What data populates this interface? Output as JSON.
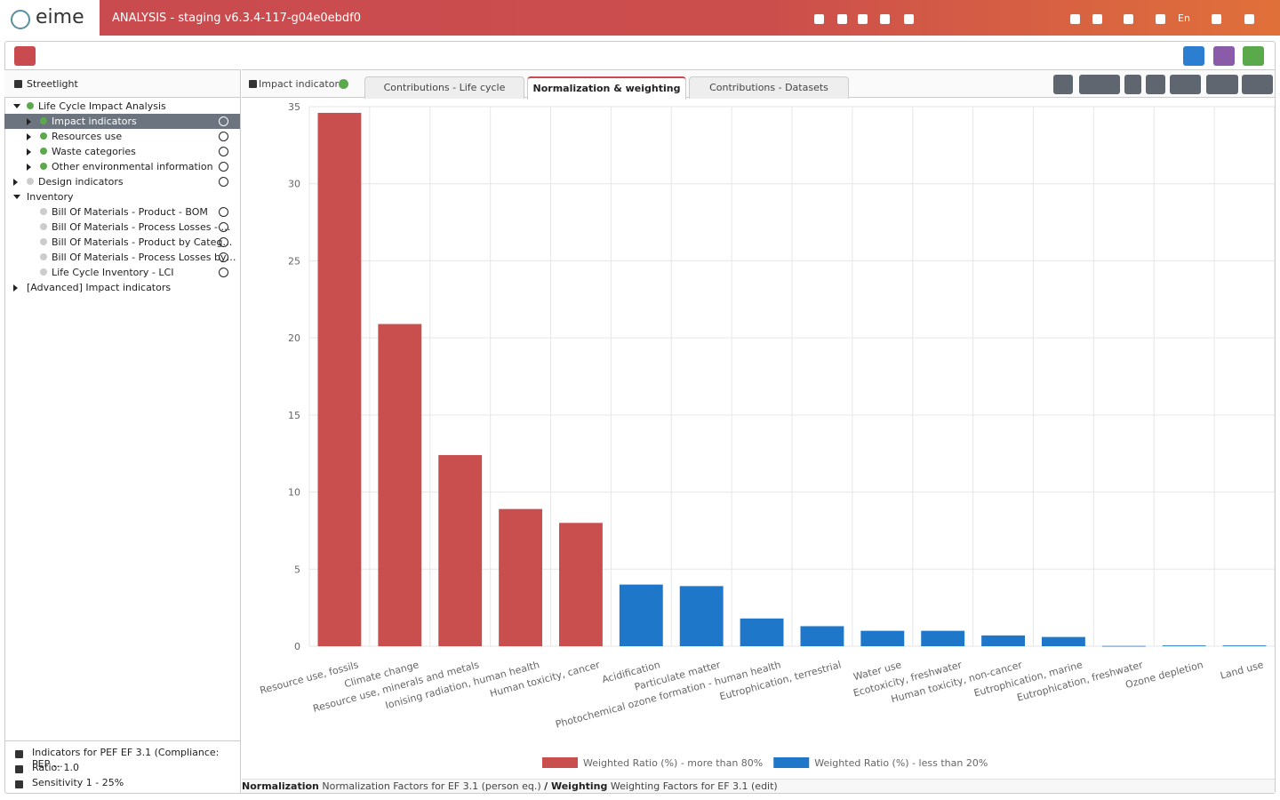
{
  "header": {
    "logo": "eime",
    "title": "ANALYSIS - staging v6.3.4-117-g04e0ebdf0",
    "language": "En"
  },
  "sidebar": {
    "title": "Streetlight",
    "tree": [
      "Life Cycle Impact Analysis",
      "Impact indicators",
      "Resources use",
      "Waste categories",
      "Other environmental information",
      "Design indicators",
      "Inventory",
      "Bill Of Materials - Product - BOM",
      "Bill Of Materials - Process Losses - …",
      "Bill Of Materials - Product by Categ…",
      "Bill Of Materials - Process Losses by…",
      "Life Cycle Inventory - LCI",
      "[Advanced] Impact indicators"
    ],
    "footer": [
      "Indicators for PEF EF 3.1 (Compliance: PEP …",
      "Ratio: 1.0",
      "Sensitivity 1 - 25%"
    ]
  },
  "panel": {
    "label": "Impact indicators",
    "tabs": [
      "Contributions - Life cycle",
      "Normalization & weighting",
      "Contributions - Datasets"
    ]
  },
  "chart_data": {
    "type": "bar",
    "categories": [
      "Resource use, fossils",
      "Climate change",
      "Resource use, minerals and metals",
      "Ionising radiation, human health",
      "Human toxicity, cancer",
      "Acidification",
      "Particulate matter",
      "Photochemical ozone formation - human health",
      "Eutrophication, terrestrial",
      "Water use",
      "Ecotoxicity, freshwater",
      "Human toxicity, non-cancer",
      "Eutrophication, marine",
      "Eutrophication, freshwater",
      "Ozone depletion",
      "Land use"
    ],
    "series": [
      {
        "name": "Weighted Ratio (%) - more than 80%",
        "color": "#c94f4f",
        "values": [
          34.6,
          20.9,
          12.4,
          8.9,
          8.0,
          null,
          null,
          null,
          null,
          null,
          null,
          null,
          null,
          null,
          null,
          null
        ]
      },
      {
        "name": "Weighted Ratio (%) - less than 20%",
        "color": "#1f77c9",
        "values": [
          null,
          null,
          null,
          null,
          null,
          4.0,
          3.9,
          1.8,
          1.3,
          1.0,
          1.0,
          0.7,
          0.6,
          0.02,
          0.05,
          0.05
        ]
      }
    ],
    "ylim": [
      0,
      35
    ],
    "yticks": [
      0,
      5,
      10,
      15,
      20,
      25,
      30,
      35
    ],
    "grid": true,
    "legend": "bottom"
  },
  "footer": {
    "normalization_label": "Normalization",
    "normalization": "Normalization Factors for EF 3.1 (person eq.)",
    "weighting_label": "/ Weighting",
    "weighting": "Weighting Factors for EF 3.1 (edit)"
  }
}
